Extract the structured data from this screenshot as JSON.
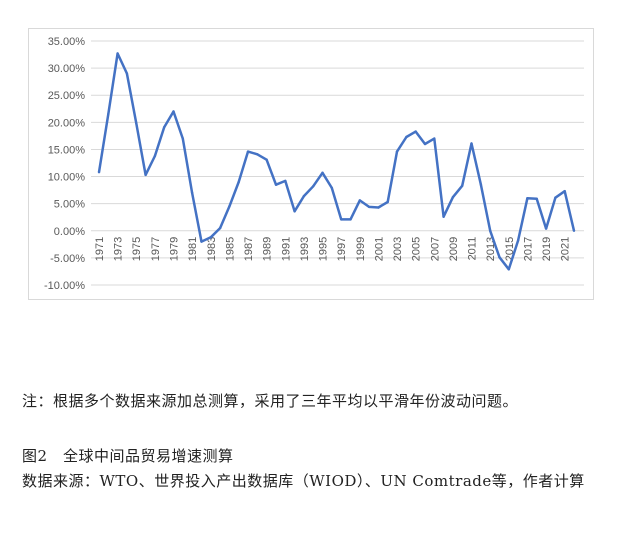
{
  "chart_data": {
    "type": "line",
    "x": [
      1971,
      1972,
      1973,
      1974,
      1975,
      1976,
      1977,
      1978,
      1979,
      1980,
      1981,
      1982,
      1983,
      1984,
      1985,
      1986,
      1987,
      1988,
      1989,
      1990,
      1991,
      1992,
      1993,
      1994,
      1995,
      1996,
      1997,
      1998,
      1999,
      2000,
      2001,
      2002,
      2003,
      2004,
      2005,
      2006,
      2007,
      2008,
      2009,
      2010,
      2011,
      2012,
      2013,
      2014,
      2015,
      2016,
      2017,
      2018,
      2019,
      2020,
      2021,
      2022
    ],
    "x_tick_labels": [
      "1971",
      "1973",
      "1975",
      "1977",
      "1979",
      "1981",
      "1983",
      "1985",
      "1987",
      "1989",
      "1991",
      "1993",
      "1995",
      "1997",
      "1999",
      "2001",
      "2003",
      "2005",
      "2007",
      "2009",
      "2011",
      "2013",
      "2015",
      "2017",
      "2019",
      "2021"
    ],
    "series": [
      {
        "values": [
          10.8,
          21.5,
          32.7,
          29.0,
          19.8,
          10.3,
          13.8,
          19.1,
          22.0,
          17.0,
          7.0,
          -2.0,
          -1.2,
          0.5,
          4.5,
          9.0,
          14.6,
          14.1,
          13.1,
          8.5,
          9.2,
          3.6,
          6.4,
          8.2,
          10.7,
          7.9,
          2.1,
          2.1,
          5.6,
          4.4,
          4.3,
          5.3,
          14.6,
          17.3,
          18.3,
          16.0,
          17.0,
          2.6,
          6.2,
          8.3,
          16.1,
          8.5,
          0.0,
          -4.9,
          -7.1,
          -1.8,
          6.0,
          5.9,
          0.4,
          6.1,
          7.3,
          0.0
        ],
        "color": "#4472C4"
      }
    ],
    "y_tick_labels": [
      "35.00%",
      "30.00%",
      "25.00%",
      "20.00%",
      "15.00%",
      "10.00%",
      "5.00%",
      "0.00%",
      "-5.00%",
      "-10.00%"
    ],
    "ylim": [
      -10,
      35
    ],
    "title": "",
    "xlabel": "",
    "ylabel": "",
    "grid": "horizontal",
    "legend": "none"
  },
  "text": {
    "note": "注：根据多个数据来源加总测算，采用了三年平均以平滑年份波动问题。",
    "caption": "图2　全球中间品贸易增速测算",
    "source": "数据来源：WTO、世界投入产出数据库（WIOD）、UN Comtrade等，作者计算"
  }
}
